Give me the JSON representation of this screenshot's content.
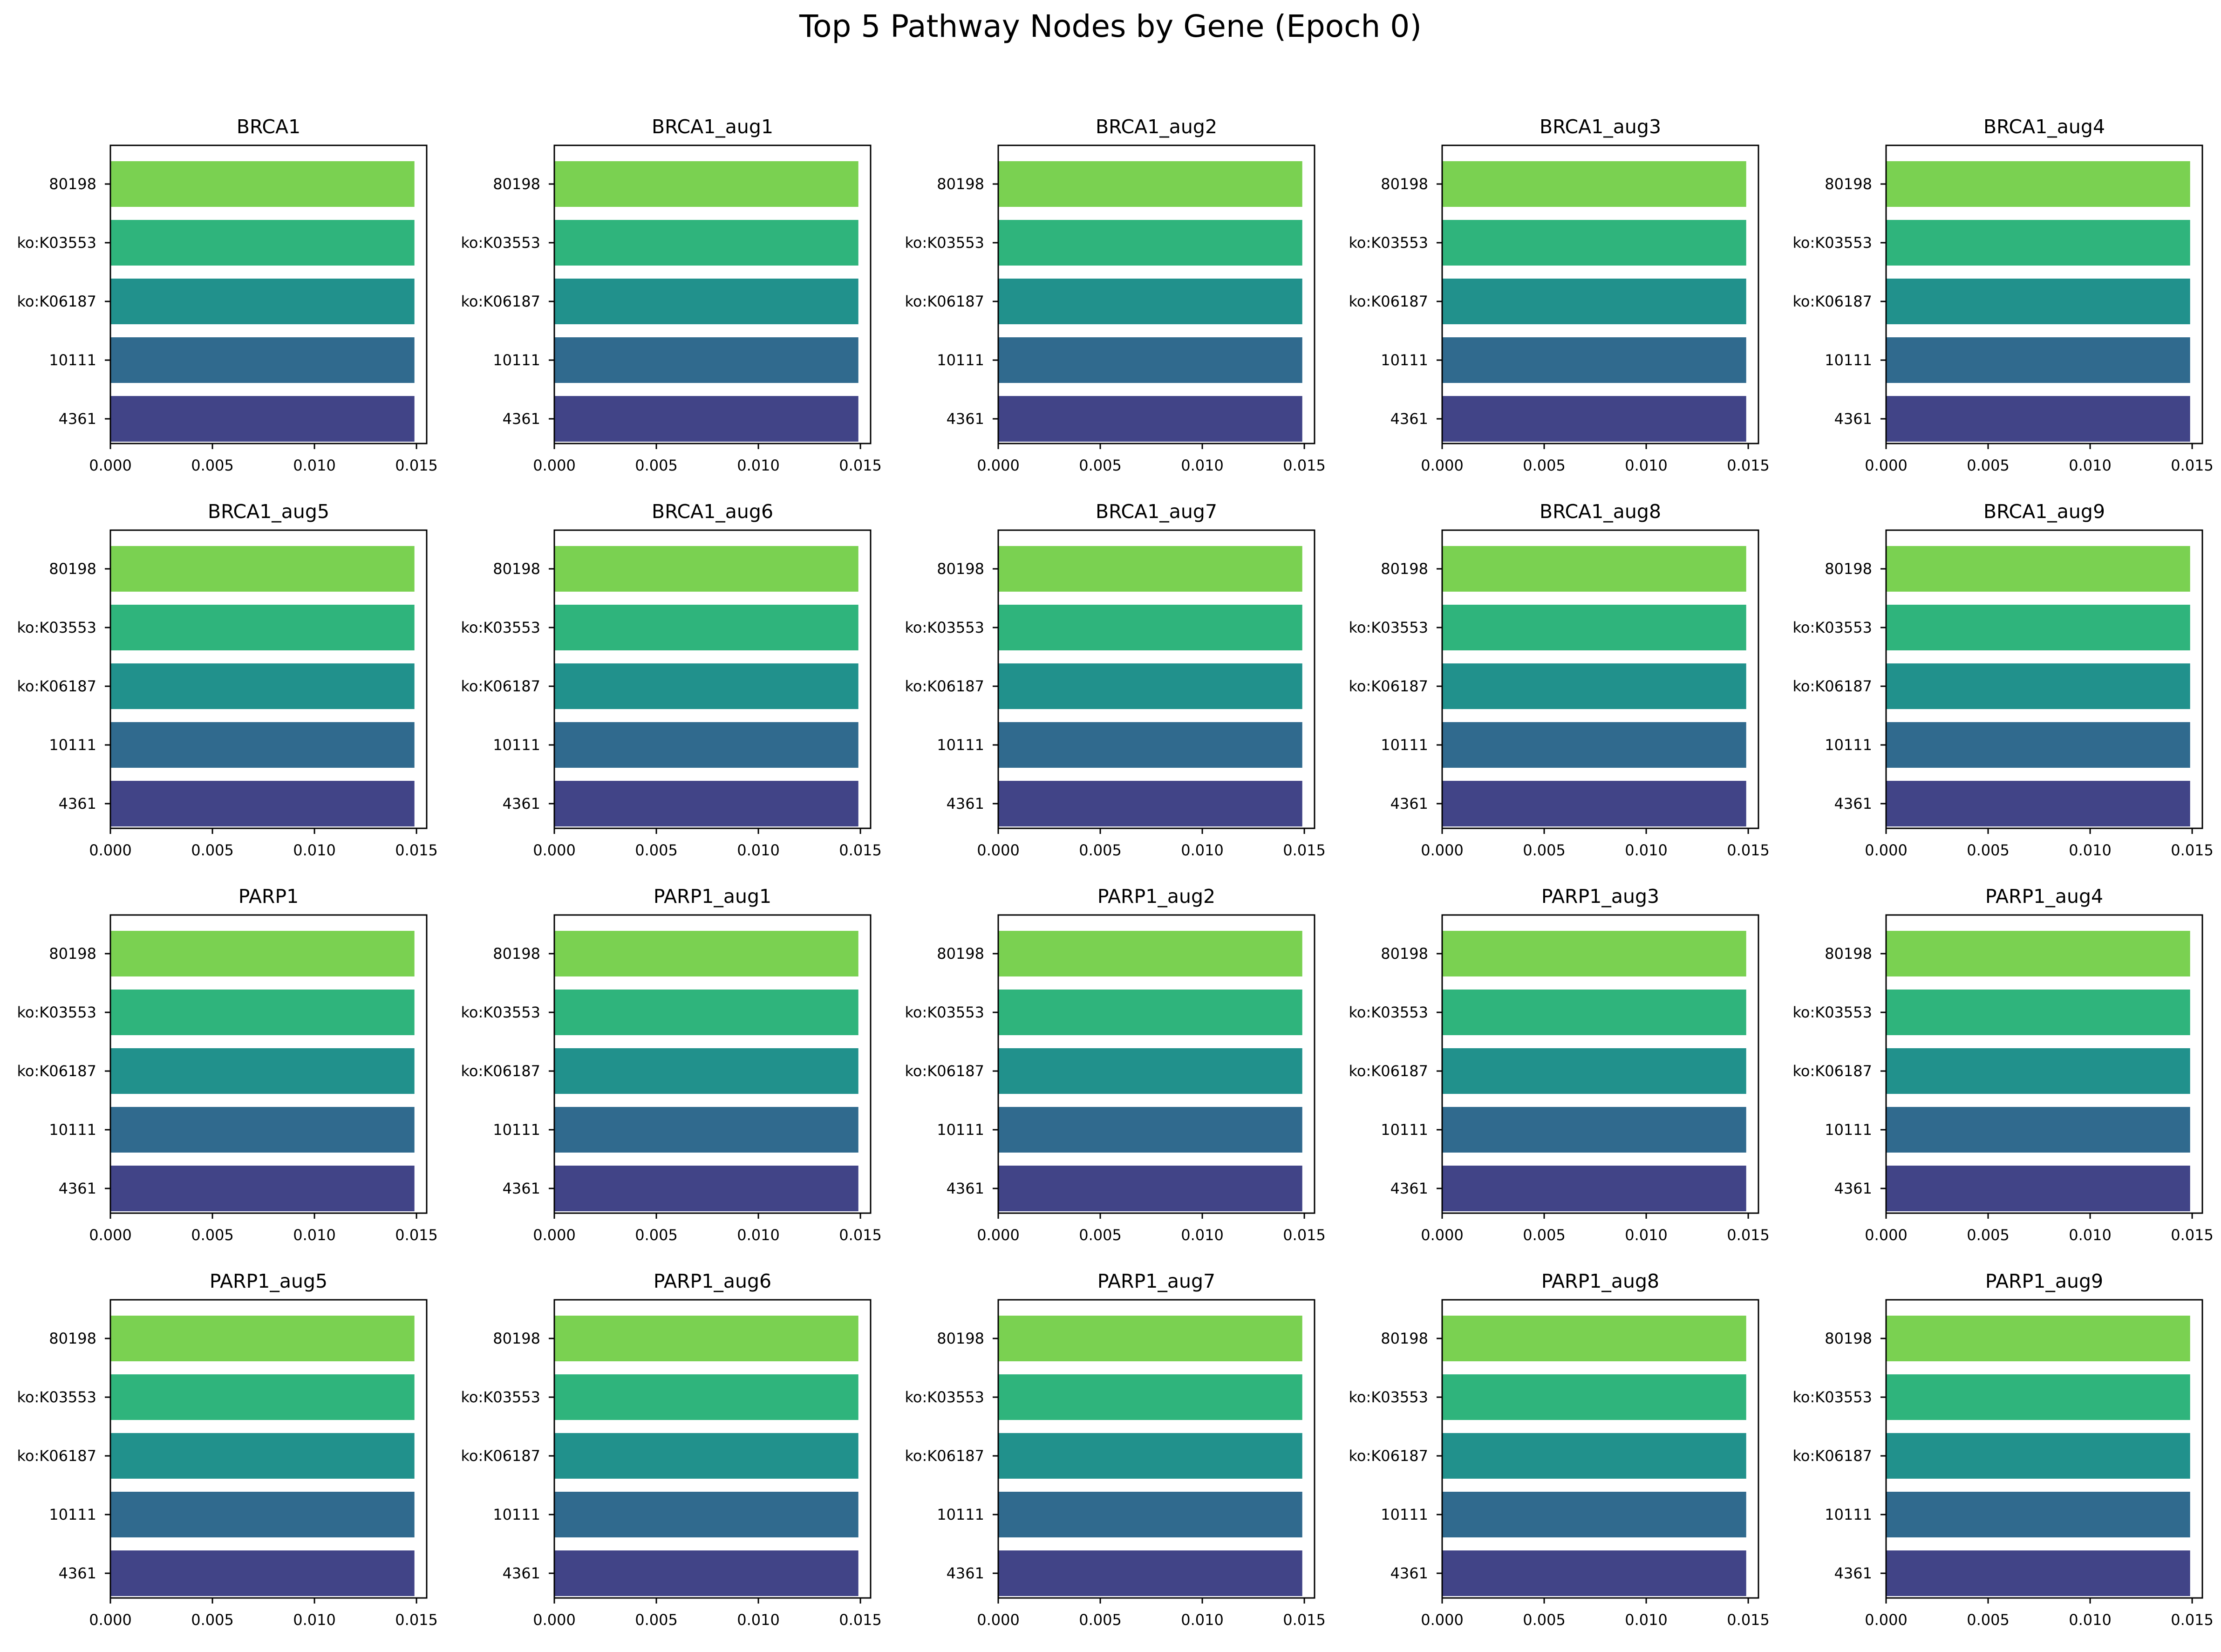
{
  "chart_data": {
    "title": "Top 5 Pathway Nodes by Gene (Epoch 0)",
    "type": "bar",
    "orientation": "horizontal",
    "xlim": [
      0,
      0.0155
    ],
    "xticks": [
      "0.000",
      "0.005",
      "0.010",
      "0.015"
    ],
    "xtick_values": [
      0,
      0.005,
      0.01,
      0.015
    ],
    "categories": [
      "80198",
      "ko:K03553",
      "ko:K06187",
      "10111",
      "4361"
    ],
    "bar_colors": [
      "#7ad151",
      "#2fb47c",
      "#21918c",
      "#306a8e",
      "#414487"
    ],
    "panels": [
      {
        "title": "BRCA1",
        "values": [
          0.0149,
          0.0149,
          0.0149,
          0.0149,
          0.0149
        ]
      },
      {
        "title": "BRCA1_aug1",
        "values": [
          0.0149,
          0.0149,
          0.0149,
          0.0149,
          0.0149
        ]
      },
      {
        "title": "BRCA1_aug2",
        "values": [
          0.0149,
          0.0149,
          0.0149,
          0.0149,
          0.0149
        ]
      },
      {
        "title": "BRCA1_aug3",
        "values": [
          0.0149,
          0.0149,
          0.0149,
          0.0149,
          0.0149
        ]
      },
      {
        "title": "BRCA1_aug4",
        "values": [
          0.0149,
          0.0149,
          0.0149,
          0.0149,
          0.0149
        ]
      },
      {
        "title": "BRCA1_aug5",
        "values": [
          0.0149,
          0.0149,
          0.0149,
          0.0149,
          0.0149
        ]
      },
      {
        "title": "BRCA1_aug6",
        "values": [
          0.0149,
          0.0149,
          0.0149,
          0.0149,
          0.0149
        ]
      },
      {
        "title": "BRCA1_aug7",
        "values": [
          0.0149,
          0.0149,
          0.0149,
          0.0149,
          0.0149
        ]
      },
      {
        "title": "BRCA1_aug8",
        "values": [
          0.0149,
          0.0149,
          0.0149,
          0.0149,
          0.0149
        ]
      },
      {
        "title": "BRCA1_aug9",
        "values": [
          0.0149,
          0.0149,
          0.0149,
          0.0149,
          0.0149
        ]
      },
      {
        "title": "PARP1",
        "values": [
          0.0149,
          0.0149,
          0.0149,
          0.0149,
          0.0149
        ]
      },
      {
        "title": "PARP1_aug1",
        "values": [
          0.0149,
          0.0149,
          0.0149,
          0.0149,
          0.0149
        ]
      },
      {
        "title": "PARP1_aug2",
        "values": [
          0.0149,
          0.0149,
          0.0149,
          0.0149,
          0.0149
        ]
      },
      {
        "title": "PARP1_aug3",
        "values": [
          0.0149,
          0.0149,
          0.0149,
          0.0149,
          0.0149
        ]
      },
      {
        "title": "PARP1_aug4",
        "values": [
          0.0149,
          0.0149,
          0.0149,
          0.0149,
          0.0149
        ]
      },
      {
        "title": "PARP1_aug5",
        "values": [
          0.0149,
          0.0149,
          0.0149,
          0.0149,
          0.0149
        ]
      },
      {
        "title": "PARP1_aug6",
        "values": [
          0.0149,
          0.0149,
          0.0149,
          0.0149,
          0.0149
        ]
      },
      {
        "title": "PARP1_aug7",
        "values": [
          0.0149,
          0.0149,
          0.0149,
          0.0149,
          0.0149
        ]
      },
      {
        "title": "PARP1_aug8",
        "values": [
          0.0149,
          0.0149,
          0.0149,
          0.0149,
          0.0149
        ]
      },
      {
        "title": "PARP1_aug9",
        "values": [
          0.0149,
          0.0149,
          0.0149,
          0.0149,
          0.0149
        ]
      }
    ]
  }
}
